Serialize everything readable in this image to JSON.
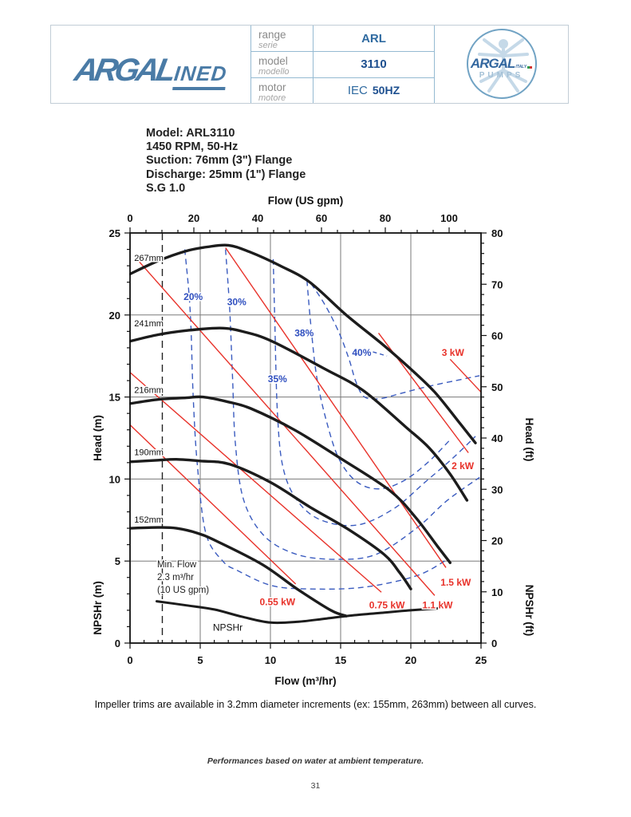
{
  "theme": {
    "logo_blue": "#4a7ba6",
    "table_border": "#95bad2",
    "value_blue": "#2f6aa0",
    "value_dark_blue": "#1d4f8f",
    "label_gray": "#8a8a8a",
    "flag_green": "#2e9e4f",
    "flag_red": "#cf3630"
  },
  "header": {
    "logo": {
      "part1": "ARGA",
      "part2": "L",
      "part3": "INED"
    },
    "table": {
      "rows": [
        {
          "label": "range",
          "sublabel": "serie",
          "value": "ARL",
          "value2": ""
        },
        {
          "label": "model",
          "sublabel": "modello",
          "value": "3110",
          "value2": ""
        },
        {
          "label": "motor",
          "sublabel": "motore",
          "value": "IEC",
          "value2": "50HZ"
        }
      ]
    },
    "badge": {
      "brand": "ARGAL",
      "country": "ITALY",
      "type": "PUMPS"
    }
  },
  "info_block": {
    "lines": [
      "Model: ARL3110",
      "1450 RPM, 50-Hz",
      "Suction: 76mm (3\") Flange",
      "Discharge: 25mm (1\") Flange",
      "S.G 1.0"
    ]
  },
  "chart_data": {
    "type": "line",
    "title": "ARL3110 pump performance curves",
    "x_axis_bottom": {
      "label": "Flow (m³/hr)",
      "min": 0,
      "max": 25,
      "major_ticks": [
        0,
        5,
        10,
        15,
        20,
        25
      ],
      "minor_step": 1,
      "gridlines": [
        5,
        10,
        15,
        20
      ]
    },
    "x_axis_top": {
      "label": "Flow (US gpm)",
      "min": 0,
      "max": 110,
      "major_ticks": [
        0,
        20,
        40,
        60,
        80,
        100
      ],
      "minor_step": 5
    },
    "y_axis_left": {
      "label_head": "Head (m)",
      "label_npshr": "NPSHr (m)",
      "min": 0,
      "max": 25,
      "major_ticks": [
        0,
        5,
        10,
        15,
        20,
        25
      ],
      "minor_step": 1,
      "gridlines": [
        5,
        10,
        15,
        20
      ]
    },
    "y_axis_right": {
      "label_head": "Head (ft)",
      "label_npshr": "NPSHr (ft)",
      "min": 0,
      "max": 80,
      "major_ticks": [
        0,
        10,
        20,
        30,
        40,
        50,
        60,
        70,
        80
      ],
      "minor_step": 2
    },
    "impeller_curves": [
      {
        "name": "267mm",
        "label_pos": [
          0.3,
          23.3
        ],
        "points": [
          [
            0,
            22.5
          ],
          [
            2,
            23.3
          ],
          [
            4,
            23.9
          ],
          [
            5.5,
            24.15
          ],
          [
            7,
            24.25
          ],
          [
            8.5,
            23.85
          ],
          [
            10.7,
            23.0
          ],
          [
            12.8,
            22.0
          ],
          [
            15.4,
            20.0
          ],
          [
            18,
            18.2
          ],
          [
            20,
            16.7
          ],
          [
            21.7,
            15.3
          ],
          [
            23.4,
            13.5
          ],
          [
            24.6,
            12.2
          ]
        ]
      },
      {
        "name": "241mm",
        "label_pos": [
          0.3,
          19.3
        ],
        "points": [
          [
            0,
            18.4
          ],
          [
            2,
            18.8
          ],
          [
            4,
            19.05
          ],
          [
            6.4,
            19.2
          ],
          [
            8,
            19.0
          ],
          [
            10.1,
            18.4
          ],
          [
            13.9,
            16.7
          ],
          [
            16.6,
            15.4
          ],
          [
            19.6,
            13.2
          ],
          [
            21.3,
            11.9
          ],
          [
            22.8,
            10.3
          ],
          [
            24,
            8.7
          ]
        ]
      },
      {
        "name": "216mm",
        "label_pos": [
          0.3,
          15.25
        ],
        "points": [
          [
            0,
            14.6
          ],
          [
            2,
            14.85
          ],
          [
            4,
            14.95
          ],
          [
            5.2,
            15.0
          ],
          [
            7,
            14.7
          ],
          [
            8.6,
            14.3
          ],
          [
            11.7,
            13.0
          ],
          [
            15.1,
            11.2
          ],
          [
            18.5,
            9.3
          ],
          [
            20.3,
            7.7
          ],
          [
            21.9,
            5.9
          ],
          [
            22.8,
            4.9
          ]
        ]
      },
      {
        "name": "190mm",
        "label_pos": [
          0.3,
          11.45
        ],
        "points": [
          [
            0,
            11.05
          ],
          [
            2,
            11.15
          ],
          [
            3.3,
            11.2
          ],
          [
            5,
            11.1
          ],
          [
            7.1,
            10.9
          ],
          [
            10,
            9.8
          ],
          [
            12.8,
            8.3
          ],
          [
            15.6,
            6.9
          ],
          [
            18.1,
            5.4
          ],
          [
            19.2,
            4.3
          ],
          [
            20,
            3.3
          ]
        ]
      },
      {
        "name": "152mm",
        "label_pos": [
          0.3,
          7.35
        ],
        "points": [
          [
            0,
            7.0
          ],
          [
            2,
            7.05
          ],
          [
            3.3,
            7.0
          ],
          [
            4.8,
            6.7
          ],
          [
            6.2,
            6.2
          ],
          [
            9.4,
            4.8
          ],
          [
            11.9,
            3.3
          ],
          [
            14.3,
            2.0
          ],
          [
            15.4,
            1.65
          ]
        ]
      }
    ],
    "npshr_curve": {
      "name": "NPSHr",
      "label_pos": [
        5.9,
        0.75
      ],
      "points": [
        [
          1.9,
          2.55
        ],
        [
          4,
          2.3
        ],
        [
          6,
          2.05
        ],
        [
          8,
          1.6
        ],
        [
          10,
          1.25
        ],
        [
          12,
          1.3
        ],
        [
          14,
          1.5
        ],
        [
          16,
          1.7
        ],
        [
          18,
          1.85
        ],
        [
          20,
          2.0
        ],
        [
          22.6,
          2.15
        ]
      ]
    },
    "efficiency_contours": [
      {
        "name": "20%",
        "label_pos": [
          4.5,
          21.1
        ],
        "points": [
          [
            3.9,
            24.0
          ],
          [
            4.2,
            21.3
          ],
          [
            4.35,
            19.0
          ],
          [
            4.5,
            15.0
          ],
          [
            4.8,
            10.8
          ],
          [
            5.4,
            6.7
          ],
          [
            6.6,
            5.0
          ],
          [
            7.7,
            4.4
          ],
          [
            10.1,
            3.5
          ],
          [
            12.8,
            3.3
          ],
          [
            16.6,
            3.4
          ],
          [
            20.4,
            4.1
          ],
          [
            22.6,
            5.1
          ]
        ]
      },
      {
        "name": "30%",
        "label_pos": [
          7.6,
          20.8
        ],
        "points": [
          [
            6.8,
            24.0
          ],
          [
            7.1,
            20.3
          ],
          [
            7.3,
            16.2
          ],
          [
            7.5,
            12.2
          ],
          [
            8.1,
            8.7
          ],
          [
            9.6,
            6.5
          ],
          [
            11.9,
            5.4
          ],
          [
            14.7,
            5.1
          ],
          [
            17.5,
            5.4
          ],
          [
            20.4,
            7.0
          ],
          [
            22.6,
            8.7
          ],
          [
            24.9,
            10.1
          ]
        ]
      },
      {
        "name": "35%",
        "label_pos": [
          10.5,
          16.1
        ],
        "points": [
          [
            10.2,
            23.4
          ],
          [
            10.3,
            20.0
          ],
          [
            10.5,
            14.0
          ],
          [
            10.9,
            10.7
          ],
          [
            11.9,
            8.7
          ],
          [
            13.6,
            7.5
          ],
          [
            16.2,
            7.2
          ],
          [
            18.8,
            8.2
          ],
          [
            21,
            9.8
          ],
          [
            22.9,
            11.2
          ],
          [
            24.6,
            12.6
          ]
        ]
      },
      {
        "name": "38%",
        "label_pos": [
          12.4,
          18.9
        ],
        "points": [
          [
            12.6,
            22.1
          ],
          [
            12.9,
            19.2
          ],
          [
            13.3,
            16.2
          ],
          [
            14,
            13.5
          ],
          [
            14.9,
            11.2
          ],
          [
            16.2,
            9.8
          ],
          [
            17.8,
            9.4
          ],
          [
            19.5,
            9.9
          ],
          [
            21.2,
            11.0
          ],
          [
            22.8,
            12.4
          ]
        ]
      },
      {
        "name": "40%",
        "label_pos": [
          16.5,
          17.7
        ],
        "leader": [
          [
            17.3,
            17.75
          ],
          [
            18.3,
            17.5
          ]
        ],
        "points": [
          [
            12.9,
            21.9
          ],
          [
            13.9,
            20.6
          ],
          [
            14.9,
            18.9
          ],
          [
            15.6,
            17.3
          ],
          [
            16.1,
            15.9
          ],
          [
            16.7,
            15.0
          ],
          [
            17.8,
            14.9
          ],
          [
            19.2,
            15.2
          ],
          [
            21,
            15.6
          ],
          [
            23.2,
            16.0
          ],
          [
            24.9,
            16.3
          ]
        ]
      }
    ],
    "power_lines": [
      {
        "name": "0.55 kW",
        "label_pos": [
          10.5,
          2.5
        ],
        "points": [
          [
            0,
            13.3
          ],
          [
            11.8,
            3.6
          ]
        ]
      },
      {
        "name": "0.75 kW",
        "label_pos": [
          18.3,
          2.3
        ],
        "points": [
          [
            0,
            16.5
          ],
          [
            17.9,
            3.1
          ]
        ]
      },
      {
        "name": "1.1 kW",
        "label_pos": [
          21.9,
          2.3
        ],
        "points": [
          [
            0.6,
            23.3
          ],
          [
            21.7,
            2.9
          ]
        ]
      },
      {
        "name": "1.5 kW",
        "label_pos": [
          23.2,
          3.7
        ],
        "points": [
          [
            6.8,
            24.1
          ],
          [
            22.5,
            4.6
          ]
        ]
      },
      {
        "name": "2 kW",
        "label_pos": [
          23.7,
          10.8
        ],
        "points": [
          [
            17.7,
            18.9
          ],
          [
            24.1,
            11.6
          ]
        ]
      },
      {
        "name": "3 kW",
        "label_pos": [
          23.0,
          17.7
        ],
        "points": [
          [
            22.8,
            17.3
          ],
          [
            25,
            15.3
          ]
        ]
      }
    ],
    "min_flow": {
      "q": 2.3,
      "label_pos": [
        1.93,
        4.62
      ],
      "label_lines": [
        "Min. Flow",
        "2.3 m³/hr",
        "(10 US gpm)"
      ]
    },
    "colors": {
      "impeller": "#1c1c1c",
      "efficiency": "#3a5bbf",
      "power": "#e8322a",
      "grid": "#7a7a7a",
      "axis": "#111111",
      "min_flow": "#222222"
    },
    "legend_position": "none",
    "grid": true
  },
  "footer": {
    "note": "Impeller trims are available in 3.2mm diameter increments (ex: 155mm, 263mm) between all curves.",
    "disclaimer": "Performances based on water at ambient temperature.",
    "page_number": "31"
  }
}
